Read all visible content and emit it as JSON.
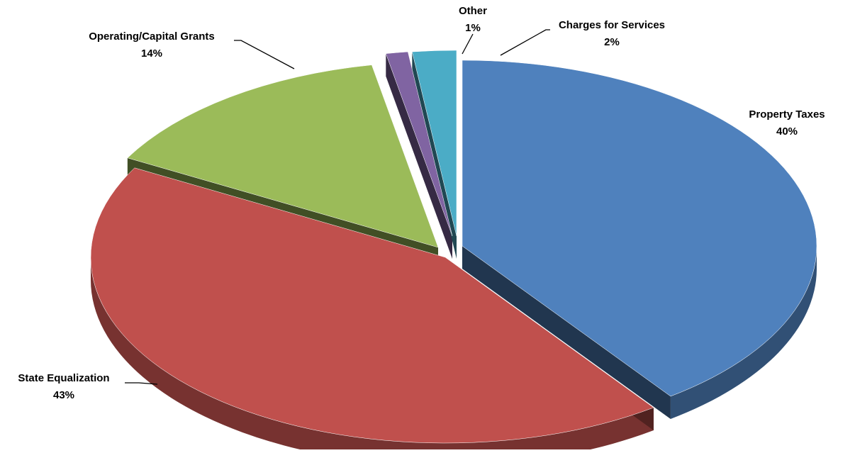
{
  "chart_data": {
    "type": "pie",
    "style": "3d-exploded",
    "slices": [
      {
        "label": "Property Taxes",
        "value": 40,
        "value_label": "40%",
        "color": "#4F81BD"
      },
      {
        "label": "State Equalization",
        "value": 43,
        "value_label": "43%",
        "color": "#C0504D"
      },
      {
        "label": "Operating/Capital Grants",
        "value": 14,
        "value_label": "14%",
        "color": "#9BBB59"
      },
      {
        "label": "Other",
        "value": 1,
        "value_label": "1%",
        "color": "#8064A2"
      },
      {
        "label": "Charges for Services",
        "value": 2,
        "value_label": "2%",
        "color": "#4BACC6"
      }
    ]
  }
}
